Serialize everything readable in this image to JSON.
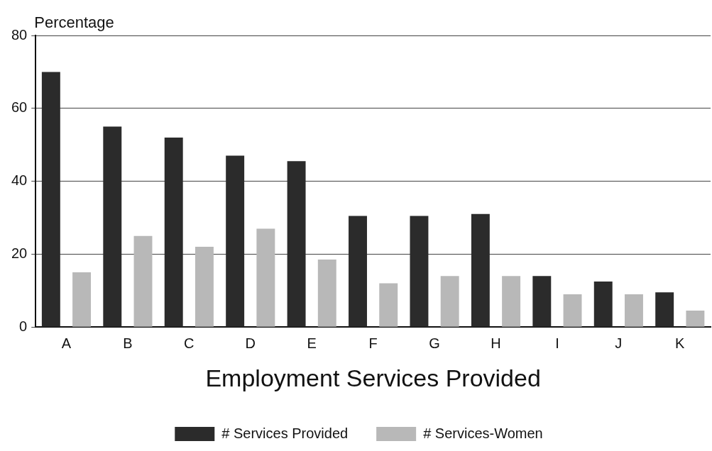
{
  "chart_data": {
    "type": "bar",
    "ylabel": "Percentage",
    "xlabel": "Employment Services Provided",
    "categories": [
      "A",
      "B",
      "C",
      "D",
      "E",
      "F",
      "G",
      "H",
      "I",
      "J",
      "K"
    ],
    "series": [
      {
        "name": "# Services Provided",
        "color": "#2b2b2b",
        "values": [
          70,
          55,
          52,
          47,
          45.5,
          30.5,
          30.5,
          31,
          14,
          12.5,
          9.5
        ]
      },
      {
        "name": "# Services-Women",
        "color": "#b8b8b8",
        "values": [
          15,
          25,
          22,
          27,
          18.5,
          12,
          14,
          14,
          9,
          9,
          4.5
        ]
      }
    ],
    "ylim": [
      0,
      80
    ],
    "yticks": [
      0,
      20,
      40,
      60,
      80
    ],
    "grid": "y",
    "legend": "bottom"
  }
}
